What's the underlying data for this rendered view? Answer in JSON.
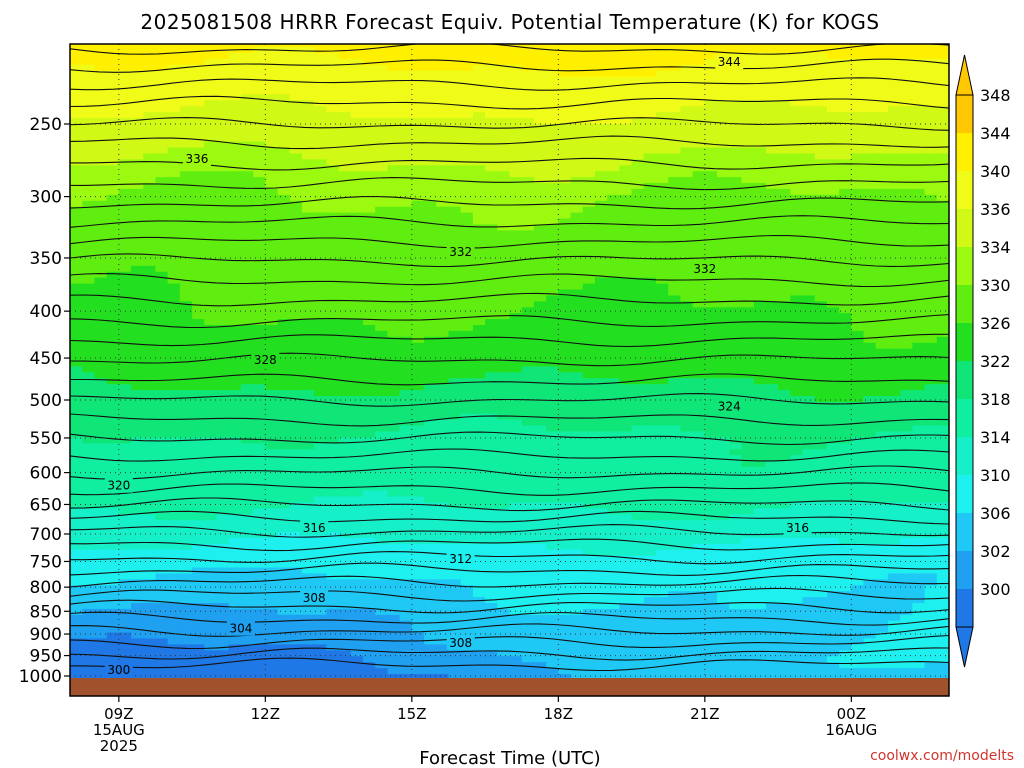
{
  "chart_data": {
    "type": "heatmap",
    "title": "2025081508 HRRR Forecast Equiv. Potential Temperature (K) for KOGS",
    "xlabel": "Forecast Time (UTC)",
    "ylabel": "",
    "credit": "coolwx.com/modelts",
    "x_ticks": [
      {
        "hour": 1,
        "labels": [
          "09Z",
          "15AUG",
          "2025"
        ]
      },
      {
        "hour": 4,
        "labels": [
          "12Z"
        ]
      },
      {
        "hour": 7,
        "labels": [
          "15Z"
        ]
      },
      {
        "hour": 10,
        "labels": [
          "18Z"
        ]
      },
      {
        "hour": 13,
        "labels": [
          "21Z"
        ]
      },
      {
        "hour": 16,
        "labels": [
          "00Z",
          "16AUG"
        ]
      }
    ],
    "x_range_hours": [
      0,
      18
    ],
    "y_axis": "pressure (hPa), log scale, inverted",
    "y_ticks": [
      250,
      300,
      350,
      400,
      450,
      500,
      550,
      600,
      650,
      700,
      750,
      800,
      850,
      900,
      950,
      1000
    ],
    "y_range": [
      200,
      1025
    ],
    "colorbar": {
      "levels": [
        300,
        302,
        306,
        310,
        314,
        318,
        322,
        326,
        330,
        334,
        336,
        340,
        344,
        348
      ],
      "labels": [
        "300",
        "302",
        "306",
        "310",
        "314",
        "318",
        "322",
        "326",
        "330",
        "334",
        "336",
        "340",
        "344",
        "348"
      ],
      "colors": [
        "#1f78e6",
        "#1fa0f0",
        "#1fc8f5",
        "#1ef0f0",
        "#16f0c8",
        "#10eea0",
        "#10e678",
        "#22e020",
        "#60ee10",
        "#9cfa10",
        "#d0fa16",
        "#f0fc18",
        "#fff000",
        "#ffc800"
      ]
    },
    "contour_labels": [
      {
        "text": "344",
        "hour": 13.5,
        "p": 214
      },
      {
        "text": "336",
        "hour": 2.6,
        "p": 273
      },
      {
        "text": "332",
        "hour": 8.0,
        "p": 345
      },
      {
        "text": "332",
        "hour": 13.0,
        "p": 360
      },
      {
        "text": "328",
        "hour": 4.0,
        "p": 452
      },
      {
        "text": "324",
        "hour": 13.5,
        "p": 508
      },
      {
        "text": "320",
        "hour": 1.0,
        "p": 620
      },
      {
        "text": "316",
        "hour": 5.0,
        "p": 690
      },
      {
        "text": "316",
        "hour": 14.9,
        "p": 690
      },
      {
        "text": "312",
        "hour": 8.0,
        "p": 745
      },
      {
        "text": "308",
        "hour": 5.0,
        "p": 822
      },
      {
        "text": "308",
        "hour": 8.0,
        "p": 920
      },
      {
        "text": "304",
        "hour": 3.5,
        "p": 888
      },
      {
        "text": "300",
        "hour": 1.0,
        "p": 985
      }
    ],
    "grid": true,
    "ground_color": "#a0522d"
  }
}
